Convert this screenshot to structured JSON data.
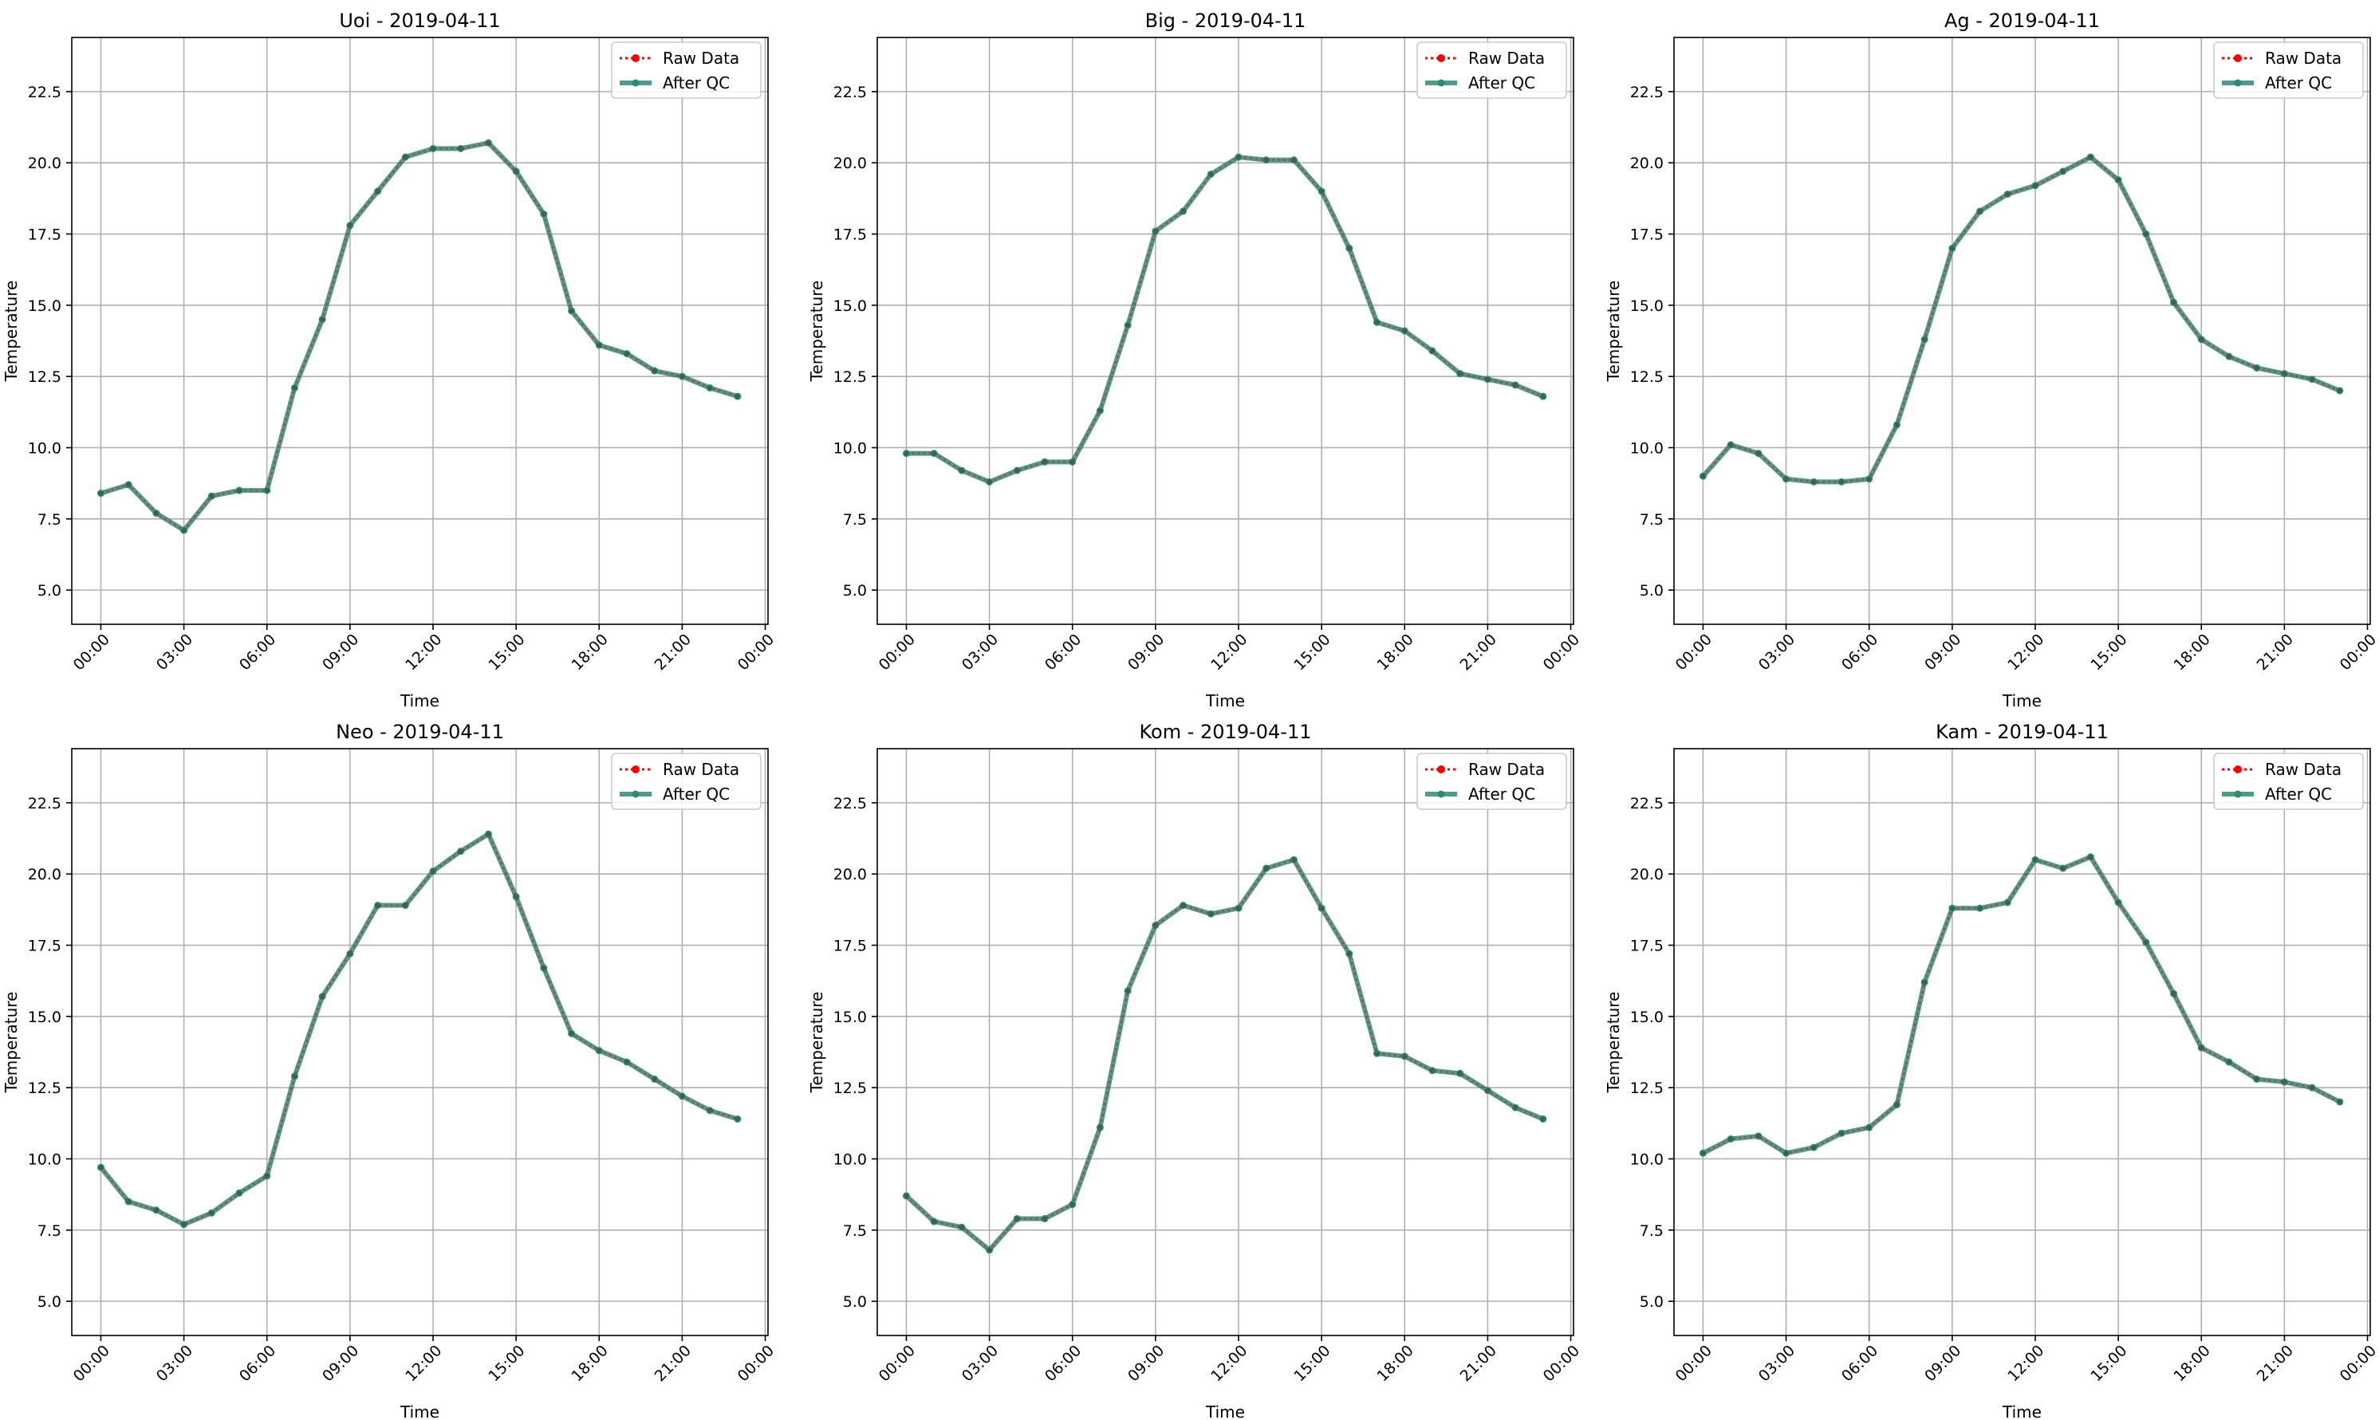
{
  "colors": {
    "raw": "#ff0000",
    "qc": "#2e8b73",
    "grid": "#b0b0b0",
    "axis": "#000000"
  },
  "legend": {
    "raw_label": "Raw Data",
    "qc_label": "After QC"
  },
  "chart_data": [
    {
      "type": "line",
      "title": "Uoi - 2019-04-11",
      "xlabel": "Time",
      "ylabel": "Temperature",
      "ylim": [
        3.8,
        24.4
      ],
      "yticks": [
        5.0,
        7.5,
        10.0,
        12.5,
        15.0,
        17.5,
        20.0,
        22.5
      ],
      "ytick_labels": [
        "5.0",
        "7.5",
        "10.0",
        "12.5",
        "15.0",
        "17.5",
        "20.0",
        "22.5"
      ],
      "xticks": [
        0,
        3,
        6,
        9,
        12,
        15,
        18,
        21,
        24
      ],
      "xtick_labels": [
        "00:00",
        "03:00",
        "06:00",
        "09:00",
        "12:00",
        "15:00",
        "18:00",
        "21:00",
        "00:00"
      ],
      "grid": true,
      "legend_position": "upper right",
      "x_hours": [
        0,
        1,
        2,
        3,
        4,
        5,
        6,
        7,
        8,
        9,
        10,
        11,
        12,
        13,
        14,
        15,
        16,
        17,
        18,
        19,
        20,
        21,
        22,
        23
      ],
      "series": [
        {
          "name": "Raw Data",
          "values": [
            8.4,
            8.7,
            7.7,
            7.1,
            8.3,
            8.5,
            8.5,
            12.1,
            14.5,
            17.8,
            19.0,
            20.2,
            20.5,
            20.5,
            20.7,
            19.7,
            18.2,
            14.8,
            13.6,
            13.3,
            12.7,
            12.5,
            12.1,
            11.8
          ]
        },
        {
          "name": "After QC",
          "values": [
            8.4,
            8.7,
            7.7,
            7.1,
            8.3,
            8.5,
            8.5,
            12.1,
            14.5,
            17.8,
            19.0,
            20.2,
            20.5,
            20.5,
            20.7,
            19.7,
            18.2,
            14.8,
            13.6,
            13.3,
            12.7,
            12.5,
            12.1,
            11.8
          ]
        }
      ]
    },
    {
      "type": "line",
      "title": "Big - 2019-04-11",
      "xlabel": "Time",
      "ylabel": "Temperature",
      "ylim": [
        3.8,
        24.4
      ],
      "yticks": [
        5.0,
        7.5,
        10.0,
        12.5,
        15.0,
        17.5,
        20.0,
        22.5
      ],
      "ytick_labels": [
        "5.0",
        "7.5",
        "10.0",
        "12.5",
        "15.0",
        "17.5",
        "20.0",
        "22.5"
      ],
      "xticks": [
        0,
        3,
        6,
        9,
        12,
        15,
        18,
        21,
        24
      ],
      "xtick_labels": [
        "00:00",
        "03:00",
        "06:00",
        "09:00",
        "12:00",
        "15:00",
        "18:00",
        "21:00",
        "00:00"
      ],
      "grid": true,
      "legend_position": "upper right",
      "x_hours": [
        0,
        1,
        2,
        3,
        4,
        5,
        6,
        7,
        8,
        9,
        10,
        11,
        12,
        13,
        14,
        15,
        16,
        17,
        18,
        19,
        20,
        21,
        22,
        23
      ],
      "series": [
        {
          "name": "Raw Data",
          "values": [
            9.8,
            9.8,
            9.2,
            8.8,
            9.2,
            9.5,
            9.5,
            11.3,
            14.3,
            17.6,
            18.3,
            19.6,
            20.2,
            20.1,
            20.1,
            19.0,
            17.0,
            14.4,
            14.1,
            13.4,
            12.6,
            12.4,
            12.2,
            11.8
          ]
        },
        {
          "name": "After QC",
          "values": [
            9.8,
            9.8,
            9.2,
            8.8,
            9.2,
            9.5,
            9.5,
            11.3,
            14.3,
            17.6,
            18.3,
            19.6,
            20.2,
            20.1,
            20.1,
            19.0,
            17.0,
            14.4,
            14.1,
            13.4,
            12.6,
            12.4,
            12.2,
            11.8
          ]
        }
      ]
    },
    {
      "type": "line",
      "title": "Ag - 2019-04-11",
      "xlabel": "Time",
      "ylabel": "Temperature",
      "ylim": [
        3.8,
        24.4
      ],
      "yticks": [
        5.0,
        7.5,
        10.0,
        12.5,
        15.0,
        17.5,
        20.0,
        22.5
      ],
      "ytick_labels": [
        "5.0",
        "7.5",
        "10.0",
        "12.5",
        "15.0",
        "17.5",
        "20.0",
        "22.5"
      ],
      "xticks": [
        0,
        3,
        6,
        9,
        12,
        15,
        18,
        21,
        24
      ],
      "xtick_labels": [
        "00:00",
        "03:00",
        "06:00",
        "09:00",
        "12:00",
        "15:00",
        "18:00",
        "21:00",
        "00:00"
      ],
      "grid": true,
      "legend_position": "upper right",
      "x_hours": [
        0,
        1,
        2,
        3,
        4,
        5,
        6,
        7,
        8,
        9,
        10,
        11,
        12,
        13,
        14,
        15,
        16,
        17,
        18,
        19,
        20,
        21,
        22,
        23
      ],
      "series": [
        {
          "name": "Raw Data",
          "values": [
            9.0,
            10.1,
            9.8,
            8.9,
            8.8,
            8.8,
            8.9,
            10.8,
            13.8,
            17.0,
            18.3,
            18.9,
            19.2,
            19.7,
            20.2,
            19.4,
            17.5,
            15.1,
            13.8,
            13.2,
            12.8,
            12.6,
            12.4,
            12.0
          ]
        },
        {
          "name": "After QC",
          "values": [
            9.0,
            10.1,
            9.8,
            8.9,
            8.8,
            8.8,
            8.9,
            10.8,
            13.8,
            17.0,
            18.3,
            18.9,
            19.2,
            19.7,
            20.2,
            19.4,
            17.5,
            15.1,
            13.8,
            13.2,
            12.8,
            12.6,
            12.4,
            12.0
          ]
        }
      ]
    },
    {
      "type": "line",
      "title": "Neo - 2019-04-11",
      "xlabel": "Time",
      "ylabel": "Temperature",
      "ylim": [
        3.8,
        24.4
      ],
      "yticks": [
        5.0,
        7.5,
        10.0,
        12.5,
        15.0,
        17.5,
        20.0,
        22.5
      ],
      "ytick_labels": [
        "5.0",
        "7.5",
        "10.0",
        "12.5",
        "15.0",
        "17.5",
        "20.0",
        "22.5"
      ],
      "xticks": [
        0,
        3,
        6,
        9,
        12,
        15,
        18,
        21,
        24
      ],
      "xtick_labels": [
        "00:00",
        "03:00",
        "06:00",
        "09:00",
        "12:00",
        "15:00",
        "18:00",
        "21:00",
        "00:00"
      ],
      "grid": true,
      "legend_position": "upper right",
      "x_hours": [
        0,
        1,
        2,
        3,
        4,
        5,
        6,
        7,
        8,
        9,
        10,
        11,
        12,
        13,
        14,
        15,
        16,
        17,
        18,
        19,
        20,
        21,
        22,
        23
      ],
      "series": [
        {
          "name": "Raw Data",
          "values": [
            9.7,
            8.5,
            8.2,
            7.7,
            8.1,
            8.8,
            9.4,
            12.9,
            15.7,
            17.2,
            18.9,
            18.9,
            20.1,
            20.8,
            21.4,
            19.2,
            16.7,
            14.4,
            13.8,
            13.4,
            12.8,
            12.2,
            11.7,
            11.4
          ]
        },
        {
          "name": "After QC",
          "values": [
            9.7,
            8.5,
            8.2,
            7.7,
            8.1,
            8.8,
            9.4,
            12.9,
            15.7,
            17.2,
            18.9,
            18.9,
            20.1,
            20.8,
            21.4,
            19.2,
            16.7,
            14.4,
            13.8,
            13.4,
            12.8,
            12.2,
            11.7,
            11.4
          ]
        }
      ]
    },
    {
      "type": "line",
      "title": "Kom - 2019-04-11",
      "xlabel": "Time",
      "ylabel": "Temperature",
      "ylim": [
        3.8,
        24.4
      ],
      "yticks": [
        5.0,
        7.5,
        10.0,
        12.5,
        15.0,
        17.5,
        20.0,
        22.5
      ],
      "ytick_labels": [
        "5.0",
        "7.5",
        "10.0",
        "12.5",
        "15.0",
        "17.5",
        "20.0",
        "22.5"
      ],
      "xticks": [
        0,
        3,
        6,
        9,
        12,
        15,
        18,
        21,
        24
      ],
      "xtick_labels": [
        "00:00",
        "03:00",
        "06:00",
        "09:00",
        "12:00",
        "15:00",
        "18:00",
        "21:00",
        "00:00"
      ],
      "grid": true,
      "legend_position": "upper right",
      "x_hours": [
        0,
        1,
        2,
        3,
        4,
        5,
        6,
        7,
        8,
        9,
        10,
        11,
        12,
        13,
        14,
        15,
        16,
        17,
        18,
        19,
        20,
        21,
        22,
        23
      ],
      "series": [
        {
          "name": "Raw Data",
          "values": [
            8.7,
            7.8,
            7.6,
            6.8,
            7.9,
            7.9,
            8.4,
            11.1,
            15.9,
            18.2,
            18.9,
            18.6,
            18.8,
            20.2,
            20.5,
            18.8,
            17.2,
            13.7,
            13.6,
            13.1,
            13.0,
            12.4,
            11.8,
            11.4
          ]
        },
        {
          "name": "After QC",
          "values": [
            8.7,
            7.8,
            7.6,
            6.8,
            7.9,
            7.9,
            8.4,
            11.1,
            15.9,
            18.2,
            18.9,
            18.6,
            18.8,
            20.2,
            20.5,
            18.8,
            17.2,
            13.7,
            13.6,
            13.1,
            13.0,
            12.4,
            11.8,
            11.4
          ]
        }
      ]
    },
    {
      "type": "line",
      "title": "Kam - 2019-04-11",
      "xlabel": "Time",
      "ylabel": "Temperature",
      "ylim": [
        3.8,
        24.4
      ],
      "yticks": [
        5.0,
        7.5,
        10.0,
        12.5,
        15.0,
        17.5,
        20.0,
        22.5
      ],
      "ytick_labels": [
        "5.0",
        "7.5",
        "10.0",
        "12.5",
        "15.0",
        "17.5",
        "20.0",
        "22.5"
      ],
      "xticks": [
        0,
        3,
        6,
        9,
        12,
        15,
        18,
        21,
        24
      ],
      "xtick_labels": [
        "00:00",
        "03:00",
        "06:00",
        "09:00",
        "12:00",
        "15:00",
        "18:00",
        "21:00",
        "00:00"
      ],
      "grid": true,
      "legend_position": "upper right",
      "x_hours": [
        0,
        1,
        2,
        3,
        4,
        5,
        6,
        7,
        8,
        9,
        10,
        11,
        12,
        13,
        14,
        15,
        16,
        17,
        18,
        19,
        20,
        21,
        22,
        23
      ],
      "series": [
        {
          "name": "Raw Data",
          "values": [
            10.2,
            10.7,
            10.8,
            10.2,
            10.4,
            10.9,
            11.1,
            11.9,
            16.2,
            18.8,
            18.8,
            19.0,
            20.5,
            20.2,
            20.6,
            19.0,
            17.6,
            15.8,
            13.9,
            13.4,
            12.8,
            12.7,
            12.5,
            12.0
          ]
        },
        {
          "name": "After QC",
          "values": [
            10.2,
            10.7,
            10.8,
            10.2,
            10.4,
            10.9,
            11.1,
            11.9,
            16.2,
            18.8,
            18.8,
            19.0,
            20.5,
            20.2,
            20.6,
            19.0,
            17.6,
            15.8,
            13.9,
            13.4,
            12.8,
            12.7,
            12.5,
            12.0
          ]
        }
      ]
    }
  ]
}
